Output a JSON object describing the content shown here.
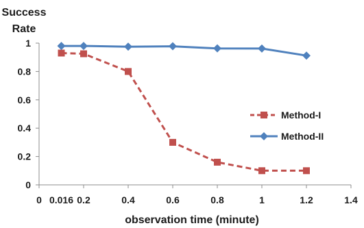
{
  "chart_data": {
    "type": "line",
    "ylabel_lines": [
      "Success",
      "Rate"
    ],
    "xlabel": "observation time (minute)",
    "xlim": [
      0,
      1.4
    ],
    "ylim": [
      0,
      1
    ],
    "xticks": [
      0,
      0.2,
      0.4,
      0.6,
      0.8,
      1,
      1.2,
      1.4
    ],
    "xtick_labels": [
      "0",
      "0.2",
      "0.4",
      "0.6",
      "0.8",
      "1",
      "1.2",
      "1.4"
    ],
    "extra_xtick": {
      "value": 0.1,
      "label": "0.016"
    },
    "yticks": [
      0,
      0.2,
      0.4,
      0.6,
      0.8,
      1
    ],
    "ytick_labels": [
      "0",
      "0.2",
      "0.4",
      "0.6",
      "0.8",
      "1"
    ],
    "grid": false,
    "legend_position": "right",
    "series": [
      {
        "name": "Method-I",
        "color": "#c0504d",
        "marker": "square",
        "dash": true,
        "x": [
          0.1,
          0.2,
          0.4,
          0.6,
          0.8,
          1.0,
          1.2
        ],
        "y": [
          0.93,
          0.925,
          0.8,
          0.3,
          0.16,
          0.1,
          0.1
        ]
      },
      {
        "name": "Method-II",
        "color": "#4f81bd",
        "marker": "diamond",
        "dash": false,
        "x": [
          0.1,
          0.2,
          0.4,
          0.6,
          0.8,
          1.0,
          1.2
        ],
        "y": [
          0.98,
          0.98,
          0.975,
          0.978,
          0.963,
          0.962,
          0.912
        ]
      }
    ]
  }
}
